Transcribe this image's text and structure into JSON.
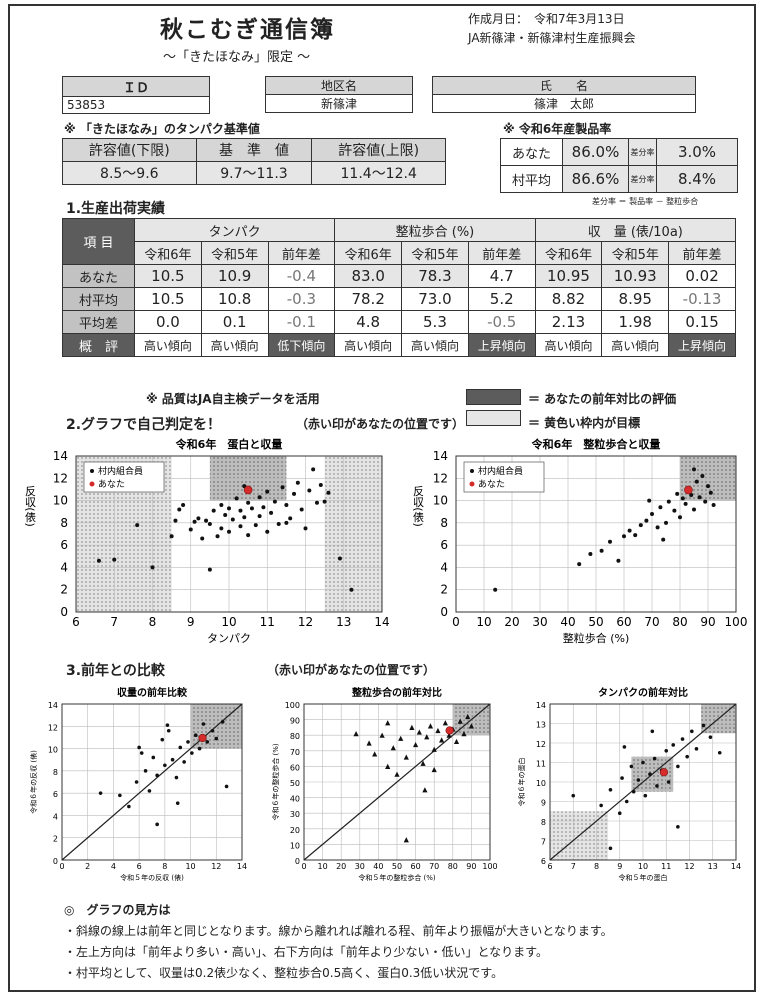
{
  "header": {
    "title": "秋こむぎ通信簿",
    "subtitle": "～「きたほなみ」限定 ～",
    "date_label": "作成月日：",
    "date": "令和7年3月13日",
    "org": "JA新篠津・新篠津村生産振興会"
  },
  "info": {
    "id_label": "ＩＤ",
    "id": "53853",
    "area_label": "地区名",
    "area": "新篠津",
    "name_label": "氏　　名",
    "name": "篠津　太郎"
  },
  "protein_ref": {
    "heading": "※ 「きたほなみ」のタンパク基準値",
    "labels": [
      "許容値(下限)",
      "基　準　値",
      "許容値(上限)"
    ],
    "values": [
      "8.5～9.6",
      "9.7～11.3",
      "11.4～12.4"
    ]
  },
  "product_rate": {
    "heading": "※ 令和6年産製品率",
    "rows": [
      {
        "label": "あなた",
        "rate": "86.0%",
        "diff_label": "差分率",
        "diff": "3.0%"
      },
      {
        "label": "村平均",
        "rate": "86.6%",
        "diff_label": "差分率",
        "diff": "8.4%"
      }
    ],
    "note": "差分率 ＝ 製品率 － 整粒歩合"
  },
  "performance": {
    "heading": "1.生産出荷実績",
    "item_label": "項 目",
    "groups": [
      "タンパク",
      "整粒歩合 (%)",
      "収　量 (俵/10a)"
    ],
    "subheaders": [
      "令和6年",
      "令和5年",
      "前年差",
      "令和6年",
      "令和5年",
      "前年差",
      "令和6年",
      "令和5年",
      "前年差"
    ],
    "rows": [
      {
        "label": "あなた",
        "values": [
          "10.5",
          "10.9",
          "-0.4",
          "83.0",
          "78.3",
          "4.7",
          "10.95",
          "10.93",
          "0.02"
        ]
      },
      {
        "label": "村平均",
        "values": [
          "10.5",
          "10.8",
          "-0.3",
          "78.2",
          "73.0",
          "5.2",
          "8.82",
          "8.95",
          "-0.13"
        ]
      },
      {
        "label": "平均差",
        "values": [
          "0.0",
          "0.1",
          "-0.1",
          "4.8",
          "5.3",
          "-0.5",
          "2.13",
          "1.98",
          "0.15"
        ]
      },
      {
        "label": "概　評",
        "values": [
          "高い傾向",
          "高い傾向",
          "低下傾向",
          "高い傾向",
          "高い傾向",
          "上昇傾向",
          "高い傾向",
          "高い傾向",
          "上昇傾向"
        ]
      }
    ],
    "note": "※ 品質はJA自主検データを活用",
    "legend_dark": "＝ あなたの前年対比の評価",
    "legend_light": "＝ 黄色い枠内が目標"
  },
  "section2": {
    "heading": "2.グラフで自己判定を！",
    "note": "（赤い印があなたの位置です）"
  },
  "section3": {
    "heading": "3.前年との比較",
    "note": "（赤い印があなたの位置です）"
  },
  "explanation": {
    "heading": "◎　グラフの見方は",
    "lines": [
      "・斜線の線上は前年と同じとなります。線から離れれば離れる程、前年より振幅が大きいとなります。",
      "・左上方向は「前年より多い・高い」、右下方向は「前年より少ない・低い」となります。",
      "・村平均として、収量は0.2俵少なく、整粒歩合0.5高く、蛋白0.3低い状況です。"
    ]
  },
  "chart_data": [
    {
      "type": "scatter",
      "title": "令和6年　蛋白と収量",
      "xlabel": "タンパク",
      "ylabel": "反収(俵)",
      "xlim": [
        6,
        14
      ],
      "ylim": [
        0,
        14
      ],
      "xticks": [
        6,
        7,
        8,
        9,
        10,
        11,
        12,
        13,
        14
      ],
      "yticks": [
        0,
        2,
        4,
        6,
        8,
        10,
        12,
        14
      ],
      "legend": [
        "村内組合員",
        "あなた"
      ],
      "legend_position": "top-left",
      "series": [
        {
          "name": "村内組合員",
          "points": [
            [
              6.6,
              4.6
            ],
            [
              7.0,
              4.7
            ],
            [
              7.6,
              7.8
            ],
            [
              8.0,
              4.0
            ],
            [
              8.5,
              6.8
            ],
            [
              8.6,
              8.2
            ],
            [
              8.7,
              9.2
            ],
            [
              8.8,
              9.6
            ],
            [
              9.0,
              7.4
            ],
            [
              9.1,
              8.1
            ],
            [
              9.2,
              8.4
            ],
            [
              9.3,
              6.6
            ],
            [
              9.4,
              8.2
            ],
            [
              9.5,
              7.9
            ],
            [
              9.6,
              9.1
            ],
            [
              9.7,
              6.8
            ],
            [
              9.8,
              7.5
            ],
            [
              9.8,
              9.6
            ],
            [
              9.9,
              8.7
            ],
            [
              10.0,
              7.2
            ],
            [
              10.0,
              9.3
            ],
            [
              10.1,
              8.3
            ],
            [
              10.2,
              10.2
            ],
            [
              10.3,
              7.7
            ],
            [
              10.3,
              9.1
            ],
            [
              10.4,
              8.5
            ],
            [
              10.5,
              6.9
            ],
            [
              10.5,
              9.8
            ],
            [
              10.6,
              9.3
            ],
            [
              10.7,
              7.8
            ],
            [
              10.8,
              10.3
            ],
            [
              10.8,
              8.6
            ],
            [
              10.9,
              9.4
            ],
            [
              11.0,
              7.2
            ],
            [
              11.0,
              10.8
            ],
            [
              11.1,
              8.9
            ],
            [
              11.2,
              9.9
            ],
            [
              11.3,
              7.9
            ],
            [
              11.4,
              11.2
            ],
            [
              11.5,
              9.6
            ],
            [
              11.6,
              8.4
            ],
            [
              11.7,
              10.6
            ],
            [
              11.8,
              11.6
            ],
            [
              11.9,
              9.2
            ],
            [
              12.0,
              7.5
            ],
            [
              12.1,
              10.9
            ],
            [
              12.2,
              12.8
            ],
            [
              12.3,
              9.8
            ],
            [
              12.4,
              11.4
            ],
            [
              12.6,
              10.7
            ],
            [
              12.9,
              4.8
            ],
            [
              13.2,
              2.0
            ],
            [
              9.5,
              3.8
            ],
            [
              10.4,
              11.3
            ],
            [
              11.5,
              8.0
            ],
            [
              12.5,
              9.9
            ]
          ]
        },
        {
          "name": "あなた",
          "points": [
            [
              10.5,
              10.95
            ]
          ]
        }
      ]
    },
    {
      "type": "scatter",
      "title": "令和6年　整粒歩合と収量",
      "xlabel": "整粒歩合 (%)",
      "ylabel": "反収(俵)",
      "xlim": [
        0,
        100
      ],
      "ylim": [
        0,
        14
      ],
      "xticks": [
        0,
        10,
        20,
        30,
        40,
        50,
        60,
        70,
        80,
        90,
        100
      ],
      "yticks": [
        0,
        2,
        4,
        6,
        8,
        10,
        12,
        14
      ],
      "legend": [
        "村内組合員",
        "あなた"
      ],
      "legend_position": "top-left",
      "series": [
        {
          "name": "村内組合員",
          "points": [
            [
              14,
              2.0
            ],
            [
              44,
              4.3
            ],
            [
              48,
              5.2
            ],
            [
              52,
              5.5
            ],
            [
              55,
              6.3
            ],
            [
              58,
              4.6
            ],
            [
              60,
              6.8
            ],
            [
              62,
              7.3
            ],
            [
              64,
              6.9
            ],
            [
              66,
              7.8
            ],
            [
              68,
              8.2
            ],
            [
              70,
              8.8
            ],
            [
              72,
              7.6
            ],
            [
              73,
              9.4
            ],
            [
              75,
              8.0
            ],
            [
              76,
              9.9
            ],
            [
              78,
              9.1
            ],
            [
              79,
              10.6
            ],
            [
              80,
              8.5
            ],
            [
              81,
              10.2
            ],
            [
              82,
              9.7
            ],
            [
              83,
              11.1
            ],
            [
              84,
              10.5
            ],
            [
              85,
              9.2
            ],
            [
              86,
              11.7
            ],
            [
              87,
              10.3
            ],
            [
              88,
              12.2
            ],
            [
              89,
              9.9
            ],
            [
              90,
              11.3
            ],
            [
              91,
              10.7
            ],
            [
              92,
              9.6
            ],
            [
              74,
              6.5
            ],
            [
              69,
              10.0
            ],
            [
              85,
              12.8
            ]
          ]
        },
        {
          "name": "あなた",
          "points": [
            [
              83.0,
              10.95
            ]
          ]
        }
      ]
    },
    {
      "type": "scatter",
      "title": "収量の前年比較",
      "xlabel": "令和５年の反収 (俵)",
      "ylabel": "令和６年の反収 (俵)",
      "xlim": [
        0,
        14
      ],
      "ylim": [
        0,
        14
      ],
      "xticks": [
        0,
        2,
        4,
        6,
        8,
        10,
        12,
        14
      ],
      "yticks": [
        0,
        2,
        4,
        6,
        8,
        10,
        12,
        14
      ],
      "series": [
        {
          "name": "",
          "points": [
            [
              3.0,
              6.0
            ],
            [
              4.5,
              5.8
            ],
            [
              5.2,
              4.8
            ],
            [
              5.8,
              7.0
            ],
            [
              6.2,
              9.6
            ],
            [
              6.5,
              8.0
            ],
            [
              6.8,
              6.2
            ],
            [
              7.1,
              9.2
            ],
            [
              7.4,
              7.6
            ],
            [
              7.8,
              10.8
            ],
            [
              8.0,
              8.5
            ],
            [
              8.3,
              11.6
            ],
            [
              8.6,
              9.0
            ],
            [
              8.9,
              7.4
            ],
            [
              9.2,
              10.1
            ],
            [
              9.5,
              8.8
            ],
            [
              9.8,
              10.6
            ],
            [
              10.1,
              9.6
            ],
            [
              10.4,
              11.2
            ],
            [
              10.7,
              10.0
            ],
            [
              11.0,
              12.2
            ],
            [
              11.3,
              10.6
            ],
            [
              11.7,
              11.6
            ],
            [
              12.0,
              10.9
            ],
            [
              12.5,
              12.4
            ],
            [
              7.4,
              3.2
            ],
            [
              8.2,
              12.1
            ],
            [
              9.0,
              5.1
            ],
            [
              12.8,
              6.6
            ],
            [
              6.0,
              10.1
            ]
          ]
        },
        {
          "name": "あなた",
          "points": [
            [
              10.93,
              10.95
            ]
          ]
        }
      ]
    },
    {
      "type": "scatter",
      "title": "整粒歩合の前年対比",
      "xlabel": "令和５年の整粒歩合 (%)",
      "ylabel": "令和６年の整粒歩合 (%)",
      "xlim": [
        0,
        100
      ],
      "ylim": [
        0,
        100
      ],
      "xticks": [
        0,
        10,
        20,
        30,
        40,
        50,
        60,
        70,
        80,
        90,
        100
      ],
      "yticks": [
        0,
        10,
        20,
        30,
        40,
        50,
        60,
        70,
        80,
        90,
        100
      ],
      "series": [
        {
          "name": "",
          "points": [
            [
              28,
              81
            ],
            [
              35,
              75
            ],
            [
              38,
              68
            ],
            [
              42,
              80
            ],
            [
              45,
              60
            ],
            [
              48,
              72
            ],
            [
              50,
              55
            ],
            [
              52,
              78
            ],
            [
              55,
              66
            ],
            [
              58,
              85
            ],
            [
              60,
              74
            ],
            [
              62,
              82
            ],
            [
              64,
              62
            ],
            [
              66,
              79
            ],
            [
              68,
              86
            ],
            [
              70,
              71
            ],
            [
              72,
              83
            ],
            [
              74,
              77
            ],
            [
              76,
              88
            ],
            [
              78,
              80
            ],
            [
              80,
              84
            ],
            [
              82,
              76
            ],
            [
              84,
              89
            ],
            [
              86,
              81
            ],
            [
              88,
              92
            ],
            [
              90,
              86
            ],
            [
              55,
              13
            ],
            [
              45,
              88
            ],
            [
              65,
              45
            ],
            [
              70,
              58
            ]
          ]
        },
        {
          "name": "あなた",
          "points": [
            [
              78.3,
              83.0
            ]
          ]
        }
      ]
    },
    {
      "type": "scatter",
      "title": "タンパクの前年対比",
      "xlabel": "令和５年の蛋白",
      "ylabel": "令和６年の蛋白",
      "xlim": [
        6,
        14
      ],
      "ylim": [
        6,
        14
      ],
      "xticks": [
        6,
        7,
        8,
        9,
        10,
        11,
        12,
        13,
        14
      ],
      "yticks": [
        6,
        7,
        8,
        9,
        10,
        11,
        12,
        13,
        14
      ],
      "series": [
        {
          "name": "",
          "points": [
            [
              7.0,
              9.3
            ],
            [
              8.2,
              8.8
            ],
            [
              8.6,
              9.6
            ],
            [
              9.0,
              8.4
            ],
            [
              9.1,
              10.2
            ],
            [
              9.3,
              9.0
            ],
            [
              9.5,
              10.8
            ],
            [
              9.6,
              9.5
            ],
            [
              9.8,
              10.1
            ],
            [
              10.0,
              11.0
            ],
            [
              10.1,
              9.3
            ],
            [
              10.3,
              10.4
            ],
            [
              10.5,
              11.2
            ],
            [
              10.6,
              9.8
            ],
            [
              10.8,
              10.6
            ],
            [
              11.0,
              11.6
            ],
            [
              11.1,
              10.0
            ],
            [
              11.3,
              11.9
            ],
            [
              11.5,
              10.8
            ],
            [
              11.7,
              12.2
            ],
            [
              11.9,
              11.3
            ],
            [
              12.1,
              12.6
            ],
            [
              12.3,
              11.7
            ],
            [
              12.6,
              12.9
            ],
            [
              13.3,
              11.5
            ],
            [
              11.5,
              7.7
            ],
            [
              9.2,
              11.8
            ],
            [
              10.4,
              12.6
            ],
            [
              8.6,
              6.6
            ],
            [
              12.9,
              12.3
            ]
          ]
        },
        {
          "name": "あなた",
          "points": [
            [
              10.9,
              10.5
            ]
          ]
        }
      ]
    }
  ]
}
